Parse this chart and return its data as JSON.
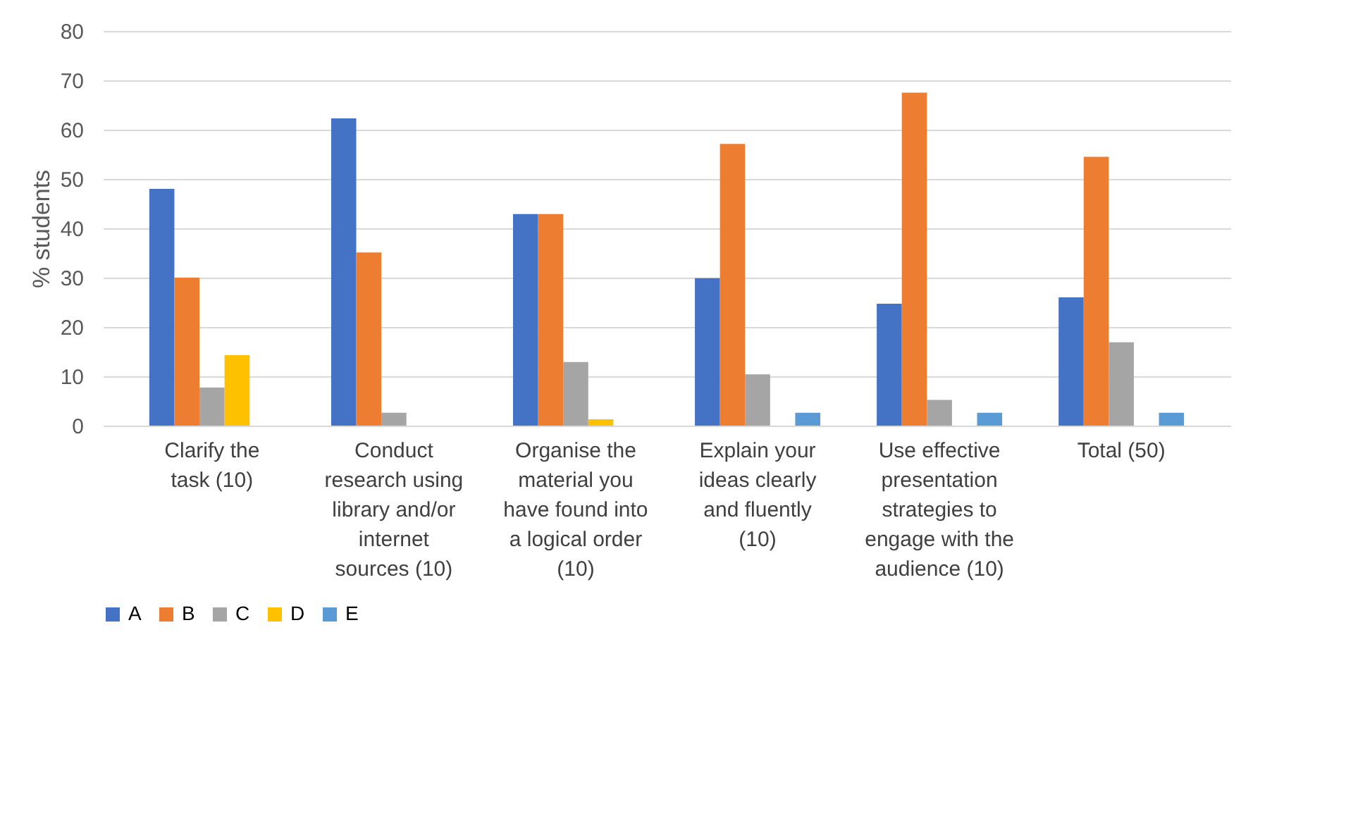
{
  "chart_data": {
    "type": "bar",
    "ylabel": "% students",
    "categories": [
      "Clarify the task (10)",
      "Conduct research using library and/or internet sources (10)",
      "Organise the material you have found into a logical order (10)",
      "Explain your ideas clearly and fluently (10)",
      "Use effective presentation strategies to engage with the audience (10)",
      "Total (50)"
    ],
    "series": [
      {
        "name": "A",
        "color": "#4472c4",
        "values": [
          48,
          62.3,
          42.9,
          29.9,
          24.7,
          26
        ]
      },
      {
        "name": "B",
        "color": "#ed7d31",
        "values": [
          30,
          35.1,
          42.9,
          57.1,
          67.5,
          54.5
        ]
      },
      {
        "name": "C",
        "color": "#a5a5a5",
        "values": [
          7.7,
          2.6,
          12.9,
          10.4,
          5.2,
          16.9
        ]
      },
      {
        "name": "D",
        "color": "#ffc000",
        "values": [
          14.3,
          0,
          1.3,
          0,
          0,
          0
        ]
      },
      {
        "name": "E",
        "color": "#5b9bd5",
        "values": [
          0,
          0,
          0,
          2.6,
          2.6,
          2.6
        ]
      }
    ],
    "ylim": [
      0,
      80
    ],
    "yticks": [
      0,
      10,
      20,
      30,
      40,
      50,
      60,
      70,
      80
    ],
    "grid": "y",
    "legend": "bottom"
  }
}
